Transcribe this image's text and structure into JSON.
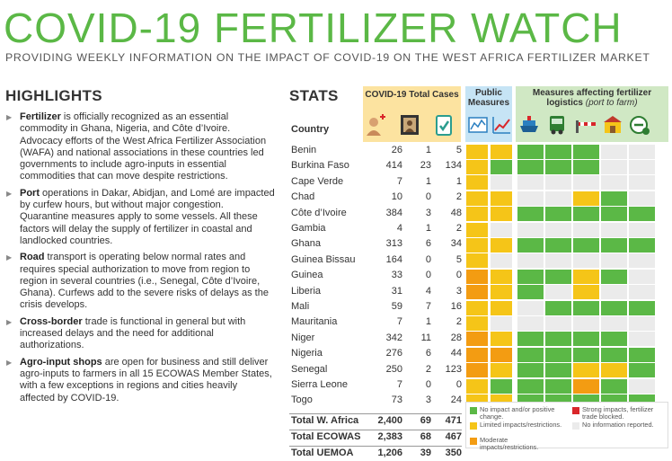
{
  "header": {
    "title": "COVID-19 FERTILIZER WATCH",
    "subtitle": "PROVIDING WEEKLY INFORMATION ON THE IMPACT OF COVID-19 ON THE WEST AFRICA FERTILIZER MARKET"
  },
  "highlights": {
    "heading": "HIGHLIGHTS",
    "items": [
      {
        "lead": "Fertilizer",
        "text": " is officially recognized as an essential commodity in Ghana, Nigeria, and Côte d’Ivoire. Advocacy efforts of the West Africa Fertilizer Association (WAFA) and national associations in these countries led governments to include agro-inputs in essential commodities that can move despite restrictions."
      },
      {
        "lead": "Port",
        "text": " operations in Dakar, Abidjan, and Lomé are impacted by curfew hours, but without major congestion. Quarantine measures apply to some vessels. All these factors will delay the supply of fertilizer in coastal and landlocked countries."
      },
      {
        "lead": "Road",
        "text": " transport is operating below normal rates and requires special authorization to move from region to region in several countries (i.e., Senegal, Côte d’Ivoire, Ghana). Curfews add to the severe risks of delays as the crisis develops."
      },
      {
        "lead": "Cross-border",
        "text": " trade is functional in general but with increased delays and the need for additional authorizations."
      },
      {
        "lead": "Agro-input shops",
        "text": " are open for business and still deliver agro-inputs to farmers in all 15 ECOWAS Member States, with a few exceptions in regions and cities heavily affected by COVID-19."
      }
    ]
  },
  "stats": {
    "heading": "STATS",
    "cases_header": "COVID-19 Total Cases",
    "public_header": "Public Measures",
    "logistics_header": "Measures affecting fertilizer logistics",
    "logistics_note": "(port to farm)",
    "country_header": "Country",
    "colors": {
      "G": "#5bb846",
      "Y": "#f5c518",
      "O": "#f39c12",
      "R": "#d9262b",
      "W": "#ebebeb"
    },
    "rows": [
      {
        "country": "Benin",
        "cases": "26",
        "deaths": "1",
        "recovered": "5",
        "m": "YYGGGWW"
      },
      {
        "country": "Burkina Faso",
        "cases": "414",
        "deaths": "23",
        "recovered": "134",
        "m": "YGGGGWW"
      },
      {
        "country": "Cape Verde",
        "cases": "7",
        "deaths": "1",
        "recovered": "1",
        "m": "YWWWWWW"
      },
      {
        "country": "Chad",
        "cases": "10",
        "deaths": "0",
        "recovered": "2",
        "m": "YYWWYGW"
      },
      {
        "country": "Côte d’Ivoire",
        "cases": "384",
        "deaths": "3",
        "recovered": "48",
        "m": "YYGGGGG"
      },
      {
        "country": "Gambia",
        "cases": "4",
        "deaths": "1",
        "recovered": "2",
        "m": "YWWWWWW"
      },
      {
        "country": "Ghana",
        "cases": "313",
        "deaths": "6",
        "recovered": "34",
        "m": "YYGGGGG"
      },
      {
        "country": "Guinea Bissau",
        "cases": "164",
        "deaths": "0",
        "recovered": "5",
        "m": "YWWWWWW"
      },
      {
        "country": "Guinea",
        "cases": "33",
        "deaths": "0",
        "recovered": "0",
        "m": "OYGGYGW"
      },
      {
        "country": "Liberia",
        "cases": "31",
        "deaths": "4",
        "recovered": "3",
        "m": "OYGWYWW"
      },
      {
        "country": "Mali",
        "cases": "59",
        "deaths": "7",
        "recovered": "16",
        "m": "YYWGGGG"
      },
      {
        "country": "Mauritania",
        "cases": "7",
        "deaths": "1",
        "recovered": "2",
        "m": "YWWWWWW"
      },
      {
        "country": "Niger",
        "cases": "342",
        "deaths": "11",
        "recovered": "28",
        "m": "OYGGGGW"
      },
      {
        "country": "Nigeria",
        "cases": "276",
        "deaths": "6",
        "recovered": "44",
        "m": "OOGGGGG"
      },
      {
        "country": "Senegal",
        "cases": "250",
        "deaths": "2",
        "recovered": "123",
        "m": "OYGGYYG"
      },
      {
        "country": "Sierra Leone",
        "cases": "7",
        "deaths": "0",
        "recovered": "0",
        "m": "YGGGOGW"
      },
      {
        "country": "Togo",
        "cases": "73",
        "deaths": "3",
        "recovered": "24",
        "m": "YYGGGGG"
      }
    ],
    "totals": [
      {
        "country": "Total W. Africa",
        "cases": "2,400",
        "deaths": "69",
        "recovered": "471"
      },
      {
        "country": "Total ECOWAS",
        "cases": "2,383",
        "deaths": "68",
        "recovered": "467"
      },
      {
        "country": "Total UEMOA",
        "cases": "1,206",
        "deaths": "39",
        "recovered": "350"
      }
    ],
    "icons": [
      "infected-person-icon",
      "deceased-portrait-icon",
      "recovered-checklist-icon",
      "public-info-icon",
      "public-chart-icon",
      "ship-port-icon",
      "truck-icon",
      "border-barrier-icon",
      "agro-shop-icon",
      "no-entry-icon"
    ]
  },
  "legend": {
    "items": [
      {
        "color": "G",
        "label": "No impact and/or positive change."
      },
      {
        "color": "R",
        "label": "Strong impacts, fertilizer trade blocked."
      },
      {
        "color": "Y",
        "label": "Limited impacts/restrictions."
      },
      {
        "color": "W",
        "label": "No information reported."
      },
      {
        "color": "O",
        "label": "Moderate impacts/restrictions."
      }
    ]
  }
}
